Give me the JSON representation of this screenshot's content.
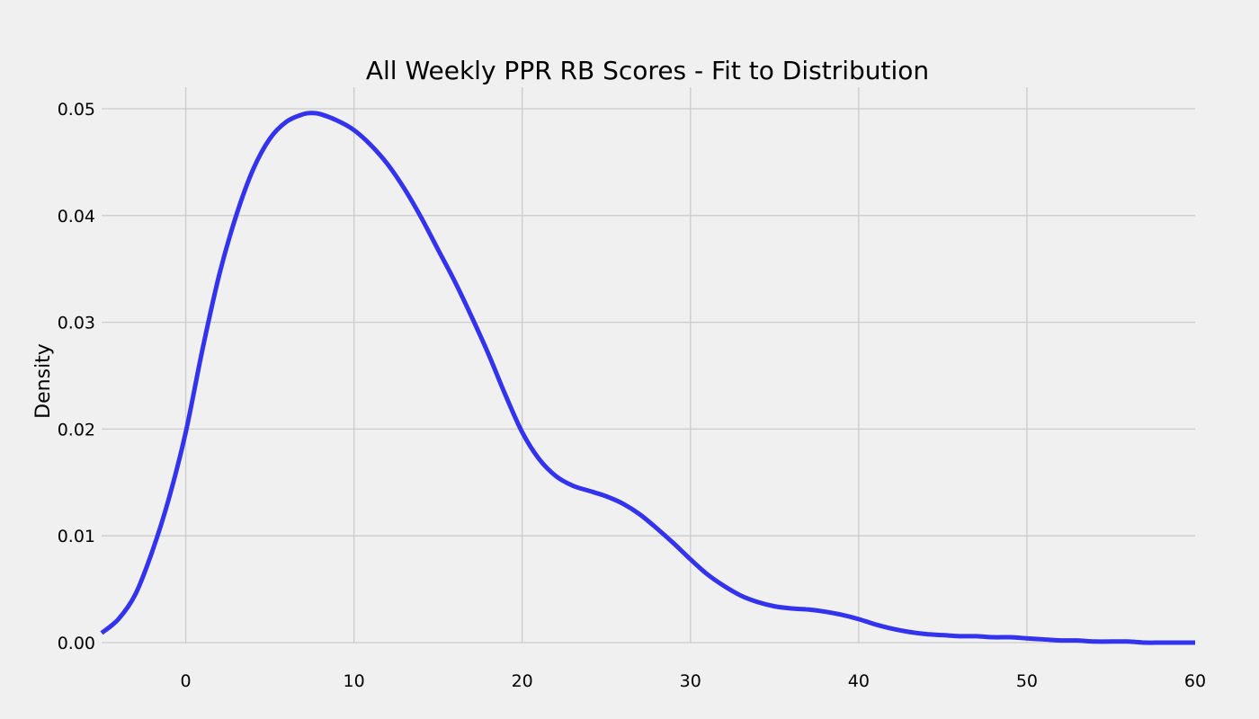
{
  "colors": {
    "background": "#f0f0f0",
    "grid": "#cbcbcb",
    "line": "#3333ee",
    "text": "#000000"
  },
  "chart_data": {
    "type": "line",
    "title": "All Weekly PPR RB Scores - Fit to Distribution",
    "xlabel": "",
    "ylabel": "Density",
    "xlim": [
      -5,
      60
    ],
    "ylim": [
      0,
      0.05
    ],
    "xticks": [
      0,
      10,
      20,
      30,
      40,
      50,
      60
    ],
    "xtick_labels": [
      "0",
      "10",
      "20",
      "30",
      "40",
      "50",
      "60"
    ],
    "yticks": [
      0,
      0.01,
      0.02,
      0.03,
      0.04,
      0.05
    ],
    "ytick_labels": [
      "0.00",
      "0.01",
      "0.02",
      "0.03",
      "0.04",
      "0.05"
    ],
    "grid": true,
    "legend": "none",
    "series": [
      {
        "color": "#3333ee",
        "x": [
          -5,
          -4,
          -3,
          -2,
          -1,
          0,
          1,
          2,
          3,
          4,
          5,
          6,
          7,
          7.5,
          8,
          9,
          10,
          11,
          12,
          13,
          14,
          15,
          16,
          17,
          18,
          19,
          20,
          21,
          22,
          23,
          24,
          25,
          26,
          27,
          28,
          29,
          30,
          31,
          32,
          33,
          34,
          35,
          36,
          37,
          38,
          39,
          40,
          41,
          42,
          43,
          44,
          45,
          46,
          47,
          48,
          49,
          50,
          51,
          52,
          53,
          54,
          55,
          56,
          57,
          58,
          59,
          60
        ],
        "y": [
          0.0009,
          0.0022,
          0.0045,
          0.0085,
          0.0135,
          0.0197,
          0.0275,
          0.0345,
          0.04,
          0.0443,
          0.0472,
          0.0488,
          0.0495,
          0.0496,
          0.0495,
          0.0489,
          0.048,
          0.0466,
          0.0448,
          0.0425,
          0.0398,
          0.0368,
          0.0338,
          0.0305,
          0.027,
          0.0232,
          0.0197,
          0.0172,
          0.0156,
          0.0147,
          0.0142,
          0.0137,
          0.013,
          0.012,
          0.0107,
          0.0093,
          0.0078,
          0.0064,
          0.0053,
          0.0044,
          0.0038,
          0.0034,
          0.0032,
          0.0031,
          0.0029,
          0.0026,
          0.0022,
          0.0017,
          0.0013,
          0.001,
          0.0008,
          0.0007,
          0.0006,
          0.0006,
          0.0005,
          0.0005,
          0.0004,
          0.0003,
          0.0002,
          0.0002,
          0.0001,
          0.0001,
          0.0001,
          0.0,
          0.0,
          0.0,
          0.0
        ]
      }
    ]
  }
}
